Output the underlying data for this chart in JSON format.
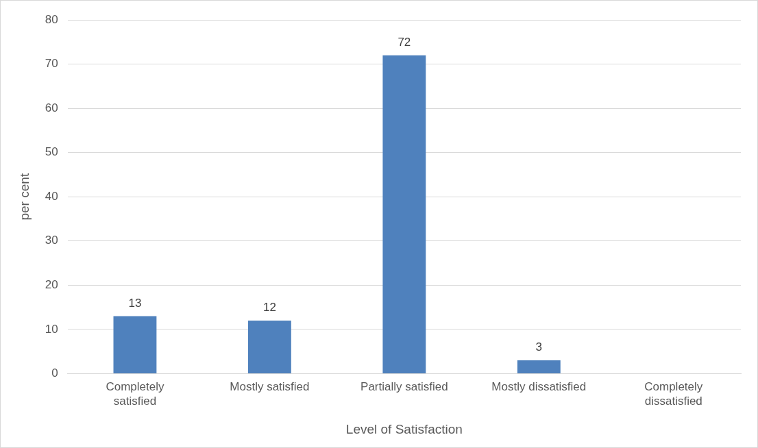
{
  "chart_data": {
    "type": "bar",
    "xlabel": "Level of Satisfaction",
    "ylabel": "per cent",
    "categories": [
      "Completely satisfied",
      "Mostly satisfied",
      "Partially satisfied",
      "Mostly dissatisfied",
      "Completely dissatisfied"
    ],
    "values": [
      13,
      12,
      72,
      3,
      0
    ],
    "value_labels": [
      "13",
      "12",
      "72",
      "3",
      null
    ],
    "color": "#4f81bd",
    "ylim": [
      0,
      80
    ],
    "yticks": [
      0,
      10,
      20,
      30,
      40,
      50,
      60,
      70,
      80
    ],
    "grid": "y",
    "legend": false
  }
}
